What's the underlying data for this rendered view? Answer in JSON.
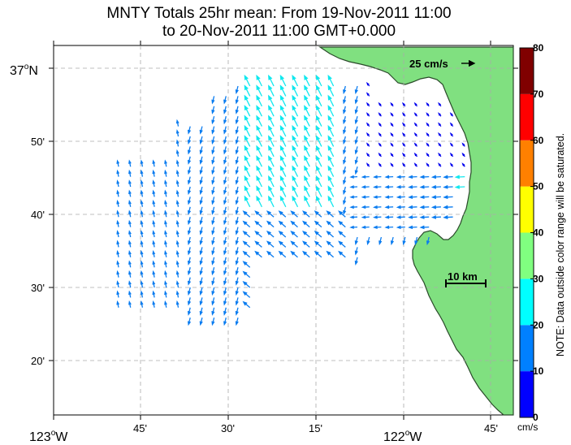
{
  "title": {
    "line1": "MNTY Totals 25hr mean: From 19-Nov-2011 11:00",
    "line2": "to 20-Nov-2011 11:00 GMT+0.000"
  },
  "axes": {
    "y_ticks": [
      {
        "label": "37°N",
        "deg": "37",
        "unit": "o",
        "hemi": "N"
      },
      {
        "label": "50'"
      },
      {
        "label": "40'"
      },
      {
        "label": "30'"
      },
      {
        "label": "20'"
      }
    ],
    "x_ticks": [
      {
        "label": "123°W",
        "deg": "123",
        "unit": "o",
        "hemi": "W"
      },
      {
        "label": "45'"
      },
      {
        "label": "30'"
      },
      {
        "label": "15'"
      },
      {
        "label": "122°W",
        "deg": "122",
        "unit": "o",
        "hemi": "W"
      },
      {
        "label": "45'"
      }
    ]
  },
  "reference_arrow": {
    "label": "25 cm/s"
  },
  "scale_bar": {
    "label": "10 km"
  },
  "colorbar": {
    "ticks": [
      "0",
      "10",
      "20",
      "30",
      "40",
      "50",
      "60",
      "70",
      "80"
    ],
    "unit_label": "cm/s",
    "note": "NOTE: Data outside color range will be saturated.",
    "bands": [
      {
        "min": 0,
        "max": 10,
        "color": "#0000ff"
      },
      {
        "min": 10,
        "max": 20,
        "color": "#0080ff"
      },
      {
        "min": 20,
        "max": 30,
        "color": "#00ffff"
      },
      {
        "min": 30,
        "max": 40,
        "color": "#80ff80"
      },
      {
        "min": 40,
        "max": 50,
        "color": "#ffff00"
      },
      {
        "min": 50,
        "max": 60,
        "color": "#ff8000"
      },
      {
        "min": 60,
        "max": 70,
        "color": "#ff0000"
      },
      {
        "min": 70,
        "max": 80,
        "color": "#800000"
      }
    ]
  },
  "colors": {
    "land": "#80e080",
    "coast": "#2a4a2a",
    "grid": "#aaaaaa"
  },
  "chart_data": {
    "type": "vector-field",
    "x_range": [
      "123°W",
      "121°42'W"
    ],
    "y_range": [
      "36°12'N",
      "37°02'N"
    ],
    "value_range_cm_s": [
      0,
      80
    ],
    "reference_speed_cm_s": 25
  }
}
